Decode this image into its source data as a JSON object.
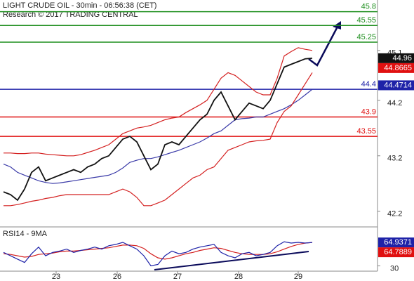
{
  "chart_data": {
    "type": "line",
    "title": "LIGHT CRUDE OIL - 30min - 06:56:38 (CET)",
    "subtitle": "Research © 2017 TRADING CENTRAL",
    "xlim": [
      -0.5,
      53.3
    ],
    "xticks": [
      {
        "value": 7.5,
        "label": "23"
      },
      {
        "value": 16.2,
        "label": "26"
      },
      {
        "value": 24.8,
        "label": "27"
      },
      {
        "value": 33.5,
        "label": "28"
      },
      {
        "value": 42,
        "label": "29"
      }
    ],
    "ylim": [
      41.93,
      46.01
    ],
    "yticks": [
      42.2,
      43.2,
      44.2,
      45.1
    ],
    "series": [
      {
        "color": "#3a3aa8",
        "values": [
          43.05,
          43.0,
          42.9,
          42.85,
          42.8,
          42.75,
          42.72,
          42.7,
          42.71,
          42.73,
          42.75,
          42.77,
          42.79,
          42.81,
          42.83,
          42.85,
          42.9,
          42.98,
          43.08,
          43.12,
          43.15,
          43.15,
          43.18,
          43.22,
          43.26,
          43.3,
          43.35,
          43.4,
          43.45,
          43.52,
          43.6,
          43.65,
          43.75,
          43.85,
          43.87,
          43.88,
          43.9,
          43.9,
          43.95,
          44.0,
          44.05,
          44.12,
          44.2,
          44.3,
          44.4
        ]
      },
      {
        "color": "#d42020",
        "values": [
          43.25,
          43.25,
          43.24,
          43.24,
          43.25,
          43.25,
          43.23,
          43.22,
          43.21,
          43.2,
          43.2,
          43.22,
          43.26,
          43.3,
          43.35,
          43.4,
          43.5,
          43.6,
          43.65,
          43.7,
          43.72,
          43.75,
          43.8,
          43.85,
          43.88,
          43.9,
          43.98,
          44.05,
          44.12,
          44.2,
          44.4,
          44.6,
          44.7,
          44.65,
          44.55,
          44.45,
          44.35,
          44.3,
          44.3,
          44.6,
          45.0,
          45.08,
          45.15,
          45.12,
          45.1
        ]
      },
      {
        "color": "#d42020",
        "values": [
          42.3,
          42.3,
          42.32,
          42.35,
          42.38,
          42.4,
          42.43,
          42.45,
          42.48,
          42.5,
          42.5,
          42.5,
          42.5,
          42.5,
          42.5,
          42.5,
          42.55,
          42.6,
          42.55,
          42.45,
          42.3,
          42.3,
          42.35,
          42.4,
          42.5,
          42.6,
          42.7,
          42.8,
          42.85,
          42.95,
          43.0,
          43.15,
          43.3,
          43.35,
          43.4,
          43.45,
          43.47,
          43.48,
          43.5,
          43.8,
          44.0,
          44.1,
          44.3,
          44.5,
          44.7
        ]
      },
      {
        "color": "#111111",
        "values": [
          42.55,
          42.5,
          42.4,
          42.6,
          42.9,
          43.0,
          42.75,
          42.8,
          42.85,
          42.9,
          42.95,
          42.9,
          43.0,
          43.05,
          43.15,
          43.2,
          43.35,
          43.5,
          43.55,
          43.45,
          43.2,
          42.95,
          43.05,
          43.4,
          43.45,
          43.4,
          43.55,
          43.7,
          43.85,
          43.95,
          44.2,
          44.35,
          44.1,
          43.85,
          44.0,
          44.15,
          44.1,
          44.05,
          44.2,
          44.5,
          44.8,
          44.85,
          44.9,
          44.95,
          44.96
        ]
      }
    ],
    "levels": [
      {
        "value": 45.8,
        "color": "#1f8f1f"
      },
      {
        "value": 45.55,
        "color": "#1f8f1f"
      },
      {
        "value": 45.25,
        "color": "#1f8f1f"
      },
      {
        "value": 44.4,
        "color": "#1e22a8"
      },
      {
        "value": 43.9,
        "color": "#e01010"
      },
      {
        "value": 43.55,
        "color": "#e01010"
      }
    ],
    "price_tags": [
      {
        "value": 44.96,
        "color": "#111111"
      },
      {
        "value": 44.8665,
        "color": "#e01010"
      },
      {
        "value": 44.4714,
        "color": "#1e22a8"
      }
    ],
    "rsi": {
      "title": "RSI14 - 9MA",
      "ylim": [
        22,
        85
      ],
      "yticks": [
        30
      ],
      "series": [
        {
          "color": "#d42020",
          "values": [
            48,
            47,
            45,
            43,
            44,
            47,
            48,
            49,
            51,
            52,
            52,
            53,
            54,
            55,
            56,
            57,
            59,
            61,
            61,
            60,
            56,
            48,
            42,
            40,
            42,
            45,
            48,
            50,
            53,
            55,
            57,
            56,
            53,
            50,
            48,
            47,
            47,
            47,
            48,
            51,
            55,
            59,
            62,
            64,
            64.7889
          ]
        },
        {
          "color": "#1e22a8",
          "values": [
            50,
            45,
            40,
            35,
            48,
            58,
            45,
            50,
            52,
            55,
            50,
            53,
            55,
            58,
            55,
            60,
            62,
            65,
            60,
            55,
            45,
            30,
            32,
            45,
            52,
            48,
            50,
            55,
            58,
            60,
            62,
            50,
            45,
            42,
            48,
            50,
            45,
            47,
            50,
            60,
            66,
            64,
            65,
            64,
            64.9371
          ]
        }
      ],
      "tags": [
        {
          "value": 64.9371,
          "color": "#1e22a8"
        },
        {
          "value": 64.7889,
          "color": "#e01010"
        }
      ]
    }
  }
}
